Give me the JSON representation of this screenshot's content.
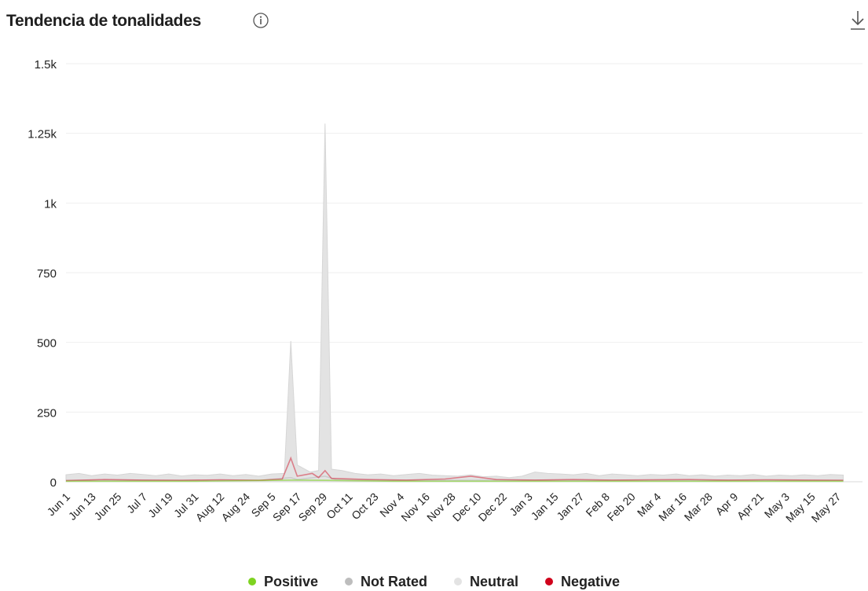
{
  "header": {
    "title": "Tendencia de tonalidades",
    "info_icon": "info-circle-icon",
    "download_icon": "download-icon"
  },
  "chart_data": {
    "type": "area",
    "title": "Tendencia de tonalidades",
    "xlabel": "",
    "ylabel": "",
    "ylim": [
      0,
      1500
    ],
    "yticks": [
      0,
      250,
      500,
      750,
      1000,
      1250,
      1500
    ],
    "yticklabels": [
      "0",
      "250",
      "500",
      "750",
      "1k",
      "1.25k",
      "1.5k"
    ],
    "x_start": "Jun 1",
    "x_step_days": 12,
    "xticklabels": [
      "Jun 1",
      "Jun 13",
      "Jun 25",
      "Jul 7",
      "Jul 19",
      "Jul 31",
      "Aug 12",
      "Aug 24",
      "Sep 5",
      "Sep 17",
      "Sep 29",
      "Oct 11",
      "Oct 23",
      "Nov 4",
      "Nov 16",
      "Nov 28",
      "Dec 10",
      "Dec 22",
      "Jan 3",
      "Jan 15",
      "Jan 27",
      "Feb 8",
      "Feb 20",
      "Mar 4",
      "Mar 16",
      "Mar 28",
      "Apr 9",
      "Apr 21",
      "May 3",
      "May 15",
      "May 27"
    ],
    "grid": true,
    "legend_position": "bottom",
    "series": [
      {
        "name": "Neutral",
        "color": "#e3e3e3",
        "points": [
          [
            "Jun 1",
            25
          ],
          [
            "Jun 7",
            30
          ],
          [
            "Jun 13",
            22
          ],
          [
            "Jun 19",
            28
          ],
          [
            "Jun 25",
            24
          ],
          [
            "Jul 1",
            30
          ],
          [
            "Jul 7",
            26
          ],
          [
            "Jul 13",
            22
          ],
          [
            "Jul 19",
            28
          ],
          [
            "Jul 25",
            21
          ],
          [
            "Jul 31",
            25
          ],
          [
            "Aug 6",
            23
          ],
          [
            "Aug 12",
            28
          ],
          [
            "Aug 18",
            22
          ],
          [
            "Aug 24",
            26
          ],
          [
            "Aug 30",
            20
          ],
          [
            "Sep 5",
            28
          ],
          [
            "Sep 11",
            30
          ],
          [
            "Sep 14",
            505
          ],
          [
            "Sep 17",
            60
          ],
          [
            "Sep 23",
            35
          ],
          [
            "Sep 27",
            40
          ],
          [
            "Sep 30",
            1285
          ],
          [
            "Oct 3",
            45
          ],
          [
            "Oct 8",
            40
          ],
          [
            "Oct 14",
            30
          ],
          [
            "Oct 20",
            25
          ],
          [
            "Oct 26",
            28
          ],
          [
            "Nov 1",
            22
          ],
          [
            "Nov 7",
            26
          ],
          [
            "Nov 13",
            30
          ],
          [
            "Nov 19",
            24
          ],
          [
            "Nov 25",
            22
          ],
          [
            "Dec 1",
            20
          ],
          [
            "Dec 7",
            25
          ],
          [
            "Dec 13",
            18
          ],
          [
            "Dec 19",
            20
          ],
          [
            "Dec 25",
            15
          ],
          [
            "Dec 31",
            20
          ],
          [
            "Jan 6",
            35
          ],
          [
            "Jan 12",
            30
          ],
          [
            "Jan 18",
            28
          ],
          [
            "Jan 24",
            25
          ],
          [
            "Jan 30",
            30
          ],
          [
            "Feb 5",
            22
          ],
          [
            "Feb 11",
            28
          ],
          [
            "Feb 17",
            25
          ],
          [
            "Feb 23",
            22
          ],
          [
            "Mar 1",
            26
          ],
          [
            "Mar 7",
            24
          ],
          [
            "Mar 13",
            28
          ],
          [
            "Mar 19",
            22
          ],
          [
            "Mar 25",
            25
          ],
          [
            "Mar 31",
            20
          ],
          [
            "Apr 6",
            24
          ],
          [
            "Apr 12",
            22
          ],
          [
            "Apr 18",
            26
          ],
          [
            "Apr 24",
            20
          ],
          [
            "Apr 30",
            24
          ],
          [
            "May 6",
            22
          ],
          [
            "May 12",
            25
          ],
          [
            "May 18",
            22
          ],
          [
            "May 24",
            26
          ],
          [
            "May 30",
            24
          ]
        ]
      },
      {
        "name": "Not Rated",
        "color": "#bdbdbd",
        "points": [
          [
            "Jun 1",
            5
          ],
          [
            "Jul 1",
            6
          ],
          [
            "Aug 1",
            5
          ],
          [
            "Sep 1",
            6
          ],
          [
            "Sep 14",
            15
          ],
          [
            "Sep 17",
            8
          ],
          [
            "Sep 30",
            20
          ],
          [
            "Oct 5",
            8
          ],
          [
            "Nov 1",
            5
          ],
          [
            "Dec 1",
            5
          ],
          [
            "Jan 1",
            6
          ],
          [
            "Feb 1",
            5
          ],
          [
            "Mar 1",
            5
          ],
          [
            "Apr 1",
            5
          ],
          [
            "May 1",
            5
          ],
          [
            "May 30",
            5
          ]
        ]
      },
      {
        "name": "Negative",
        "color": "#d0021b",
        "points": [
          [
            "Jun 1",
            4
          ],
          [
            "Jun 19",
            8
          ],
          [
            "Jul 7",
            6
          ],
          [
            "Jul 25",
            5
          ],
          [
            "Aug 12",
            7
          ],
          [
            "Aug 30",
            5
          ],
          [
            "Sep 10",
            10
          ],
          [
            "Sep 14",
            85
          ],
          [
            "Sep 17",
            20
          ],
          [
            "Sep 24",
            30
          ],
          [
            "Sep 27",
            15
          ],
          [
            "Sep 30",
            40
          ],
          [
            "Oct 3",
            12
          ],
          [
            "Oct 20",
            8
          ],
          [
            "Nov 7",
            6
          ],
          [
            "Nov 25",
            10
          ],
          [
            "Dec 7",
            20
          ],
          [
            "Dec 19",
            8
          ],
          [
            "Jan 6",
            6
          ],
          [
            "Jan 24",
            8
          ],
          [
            "Feb 11",
            6
          ],
          [
            "Mar 1",
            7
          ],
          [
            "Mar 19",
            8
          ],
          [
            "Apr 6",
            6
          ],
          [
            "Apr 24",
            7
          ],
          [
            "May 12",
            6
          ],
          [
            "May 30",
            5
          ]
        ]
      },
      {
        "name": "Positive",
        "color": "#7ed321",
        "points": [
          [
            "Jun 1",
            2
          ],
          [
            "Aug 1",
            2
          ],
          [
            "Sep 14",
            6
          ],
          [
            "Sep 30",
            5
          ],
          [
            "Nov 1",
            2
          ],
          [
            "Jan 1",
            2
          ],
          [
            "Mar 1",
            2
          ],
          [
            "May 30",
            2
          ]
        ]
      }
    ]
  },
  "legend": [
    {
      "label": "Positive",
      "color": "#7ed321"
    },
    {
      "label": "Not Rated",
      "color": "#bdbdbd"
    },
    {
      "label": "Neutral",
      "color": "#e3e3e3"
    },
    {
      "label": "Negative",
      "color": "#d0021b"
    }
  ]
}
